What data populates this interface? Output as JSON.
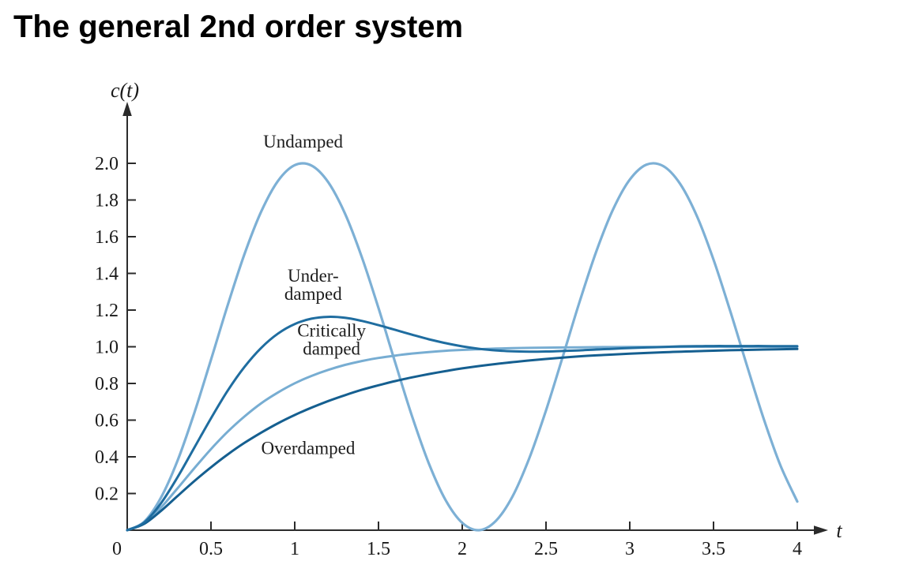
{
  "page": {
    "title": "The general 2nd order system",
    "background_color": "#ffffff"
  },
  "chart_data": {
    "type": "line",
    "title": "The general 2nd order system",
    "xlabel": "t",
    "ylabel": "c(t)",
    "xlim": [
      0,
      4
    ],
    "ylim": [
      0,
      2
    ],
    "grid": false,
    "legend": "inline annotations next to each curve",
    "axis_color": "#2b2b2b",
    "text_color": "#1a1a1a",
    "x_ticks": {
      "values": [
        0,
        0.5,
        1,
        1.5,
        2,
        2.5,
        3,
        3.5,
        4
      ],
      "labels": [
        "0",
        "0.5",
        "1",
        "1.5",
        "2",
        "2.5",
        "3",
        "3.5",
        "4"
      ]
    },
    "y_ticks": {
      "values": [
        0.2,
        0.4,
        0.6,
        0.8,
        1.0,
        1.2,
        1.4,
        1.6,
        1.8,
        2.0
      ],
      "labels": [
        "0.2",
        "0.4",
        "0.6",
        "0.8",
        "1.0",
        "1.2",
        "1.4",
        "1.6",
        "1.8",
        "2.0"
      ]
    },
    "series": [
      {
        "name": "Undamped",
        "color": "#7db0d5",
        "width": 3.2,
        "points": [
          [
            0,
            0
          ],
          [
            0.1,
            0.045
          ],
          [
            0.2,
            0.175
          ],
          [
            0.3,
            0.378
          ],
          [
            0.4,
            0.638
          ],
          [
            0.5,
            0.929
          ],
          [
            0.6,
            1.227
          ],
          [
            0.7,
            1.505
          ],
          [
            0.8,
            1.737
          ],
          [
            0.9,
            1.904
          ],
          [
            1.0,
            1.99
          ],
          [
            1.1,
            1.988
          ],
          [
            1.2,
            1.897
          ],
          [
            1.3,
            1.726
          ],
          [
            1.4,
            1.49
          ],
          [
            1.5,
            1.211
          ],
          [
            1.6,
            0.913
          ],
          [
            1.7,
            0.622
          ],
          [
            1.8,
            0.365
          ],
          [
            1.9,
            0.165
          ],
          [
            2.0,
            0.04
          ],
          [
            2.1,
            0.0
          ],
          [
            2.2,
            0.05
          ],
          [
            2.3,
            0.184
          ],
          [
            2.4,
            0.392
          ],
          [
            2.5,
            0.653
          ],
          [
            2.6,
            0.946
          ],
          [
            2.7,
            1.244
          ],
          [
            2.8,
            1.519
          ],
          [
            2.9,
            1.748
          ],
          [
            3.0,
            1.911
          ],
          [
            3.1,
            1.993
          ],
          [
            3.2,
            1.985
          ],
          [
            3.3,
            1.889
          ],
          [
            3.4,
            1.714
          ],
          [
            3.5,
            1.475
          ],
          [
            3.6,
            1.194
          ],
          [
            3.7,
            0.896
          ],
          [
            3.8,
            0.606
          ],
          [
            3.9,
            0.352
          ],
          [
            4.0,
            0.156
          ]
        ]
      },
      {
        "name": "Critically damped",
        "color": "#77add2",
        "width": 3,
        "points": [
          [
            0,
            0
          ],
          [
            0.1,
            0.037
          ],
          [
            0.2,
            0.122
          ],
          [
            0.3,
            0.228
          ],
          [
            0.4,
            0.337
          ],
          [
            0.5,
            0.442
          ],
          [
            0.6,
            0.537
          ],
          [
            0.7,
            0.62
          ],
          [
            0.8,
            0.692
          ],
          [
            0.9,
            0.751
          ],
          [
            1.0,
            0.801
          ],
          [
            1.1,
            0.841
          ],
          [
            1.2,
            0.874
          ],
          [
            1.3,
            0.901
          ],
          [
            1.4,
            0.922
          ],
          [
            1.5,
            0.939
          ],
          [
            1.6,
            0.952
          ],
          [
            1.7,
            0.963
          ],
          [
            1.8,
            0.971
          ],
          [
            1.9,
            0.978
          ],
          [
            2.0,
            0.983
          ],
          [
            2.2,
            0.99
          ],
          [
            2.4,
            0.994
          ],
          [
            2.6,
            0.996
          ],
          [
            2.8,
            0.998
          ],
          [
            3.0,
            0.999
          ],
          [
            3.2,
            0.999
          ],
          [
            3.4,
            1.0
          ],
          [
            3.6,
            1.0
          ],
          [
            3.8,
            1.0
          ],
          [
            4.0,
            1.0
          ]
        ]
      },
      {
        "name": "Overdamped",
        "color": "#155f90",
        "width": 3,
        "points": [
          [
            0,
            0
          ],
          [
            0.1,
            0.034
          ],
          [
            0.2,
            0.104
          ],
          [
            0.3,
            0.186
          ],
          [
            0.4,
            0.267
          ],
          [
            0.5,
            0.343
          ],
          [
            0.6,
            0.413
          ],
          [
            0.7,
            0.476
          ],
          [
            0.8,
            0.532
          ],
          [
            0.9,
            0.583
          ],
          [
            1.0,
            0.628
          ],
          [
            1.1,
            0.668
          ],
          [
            1.2,
            0.704
          ],
          [
            1.3,
            0.736
          ],
          [
            1.4,
            0.765
          ],
          [
            1.5,
            0.79
          ],
          [
            1.6,
            0.813
          ],
          [
            1.7,
            0.833
          ],
          [
            1.8,
            0.851
          ],
          [
            1.9,
            0.867
          ],
          [
            2.0,
            0.882
          ],
          [
            2.2,
            0.906
          ],
          [
            2.4,
            0.925
          ],
          [
            2.6,
            0.941
          ],
          [
            2.8,
            0.953
          ],
          [
            3.0,
            0.962
          ],
          [
            3.2,
            0.97
          ],
          [
            3.4,
            0.976
          ],
          [
            3.6,
            0.981
          ],
          [
            3.8,
            0.985
          ],
          [
            4.0,
            0.988
          ]
        ]
      },
      {
        "name": "Underdamped",
        "color": "#1f6da0",
        "width": 3,
        "points": [
          [
            0,
            0
          ],
          [
            0.1,
            0.041
          ],
          [
            0.2,
            0.145
          ],
          [
            0.3,
            0.288
          ],
          [
            0.4,
            0.449
          ],
          [
            0.5,
            0.61
          ],
          [
            0.6,
            0.761
          ],
          [
            0.7,
            0.89
          ],
          [
            0.8,
            0.994
          ],
          [
            0.9,
            1.072
          ],
          [
            1.0,
            1.124
          ],
          [
            1.1,
            1.153
          ],
          [
            1.2,
            1.163
          ],
          [
            1.3,
            1.158
          ],
          [
            1.4,
            1.141
          ],
          [
            1.5,
            1.118
          ],
          [
            1.6,
            1.092
          ],
          [
            1.7,
            1.066
          ],
          [
            1.8,
            1.041
          ],
          [
            1.9,
            1.02
          ],
          [
            2.0,
            1.002
          ],
          [
            2.1,
            0.989
          ],
          [
            2.2,
            0.98
          ],
          [
            2.3,
            0.975
          ],
          [
            2.4,
            0.973
          ],
          [
            2.5,
            0.974
          ],
          [
            2.6,
            0.977
          ],
          [
            2.7,
            0.98
          ],
          [
            2.8,
            0.985
          ],
          [
            2.9,
            0.989
          ],
          [
            3.0,
            0.993
          ],
          [
            3.1,
            0.996
          ],
          [
            3.2,
            0.999
          ],
          [
            3.3,
            1.002
          ],
          [
            3.4,
            1.003
          ],
          [
            3.5,
            1.004
          ],
          [
            3.6,
            1.004
          ],
          [
            3.7,
            1.004
          ],
          [
            3.8,
            1.004
          ],
          [
            3.9,
            1.003
          ],
          [
            4.0,
            1.003
          ]
        ]
      }
    ],
    "annotations": [
      {
        "text_lines": [
          "Undamped"
        ],
        "t": 1.05,
        "c": 2.12
      },
      {
        "text_lines": [
          "Under-",
          "damped"
        ],
        "t": 1.11,
        "c": 1.34
      },
      {
        "text_lines": [
          "Critically",
          "damped"
        ],
        "t": 1.22,
        "c": 1.04
      },
      {
        "text_lines": [
          "Overdamped"
        ],
        "t": 1.08,
        "c": 0.45
      }
    ]
  }
}
